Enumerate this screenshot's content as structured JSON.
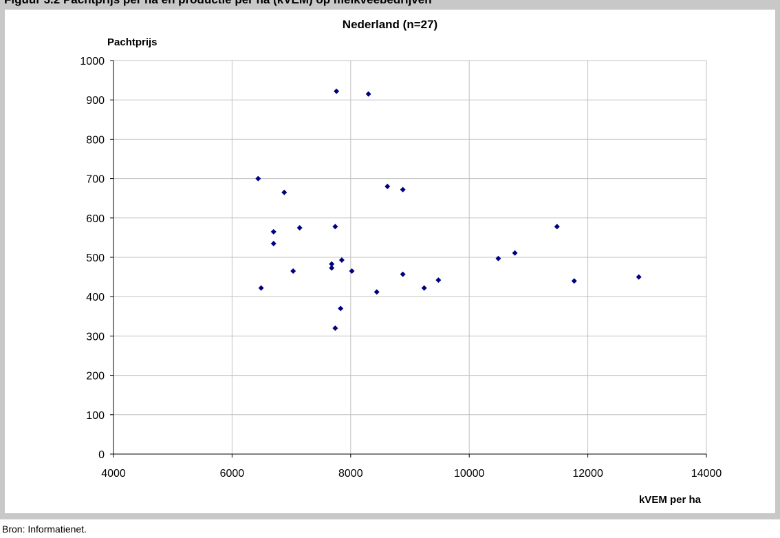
{
  "header_strip": "Figuur 3.2 Pachtprijs per ha en productie per ha (kVEM) op melkveebedrijven",
  "chart_data": {
    "type": "scatter",
    "title": "Nederland (n=27)",
    "xlabel": "kVEM per ha",
    "ylabel": "Pachtprijs",
    "xlim": [
      4000,
      14000
    ],
    "ylim": [
      0,
      1000
    ],
    "xticks": [
      "4000",
      "6000",
      "8000",
      "10000",
      "12000",
      "14000"
    ],
    "yticks": [
      "0",
      "100",
      "200",
      "300",
      "400",
      "500",
      "600",
      "700",
      "800",
      "900",
      "1000"
    ],
    "grid": true,
    "marker_color": "#000080",
    "points": [
      {
        "x": 6440,
        "y": 700
      },
      {
        "x": 6490,
        "y": 422
      },
      {
        "x": 6700,
        "y": 565
      },
      {
        "x": 6700,
        "y": 535
      },
      {
        "x": 6880,
        "y": 665
      },
      {
        "x": 7030,
        "y": 465
      },
      {
        "x": 7140,
        "y": 575
      },
      {
        "x": 7680,
        "y": 483
      },
      {
        "x": 7680,
        "y": 473
      },
      {
        "x": 7740,
        "y": 578
      },
      {
        "x": 7740,
        "y": 320
      },
      {
        "x": 7760,
        "y": 922
      },
      {
        "x": 7830,
        "y": 370
      },
      {
        "x": 7850,
        "y": 493
      },
      {
        "x": 8020,
        "y": 465
      },
      {
        "x": 8300,
        "y": 915
      },
      {
        "x": 8440,
        "y": 412
      },
      {
        "x": 8620,
        "y": 680
      },
      {
        "x": 8880,
        "y": 672
      },
      {
        "x": 8880,
        "y": 457
      },
      {
        "x": 9240,
        "y": 422
      },
      {
        "x": 9480,
        "y": 442
      },
      {
        "x": 10490,
        "y": 497
      },
      {
        "x": 10770,
        "y": 511
      },
      {
        "x": 11480,
        "y": 578
      },
      {
        "x": 11770,
        "y": 440
      },
      {
        "x": 12860,
        "y": 450
      }
    ]
  },
  "source": "Bron: Informatienet."
}
